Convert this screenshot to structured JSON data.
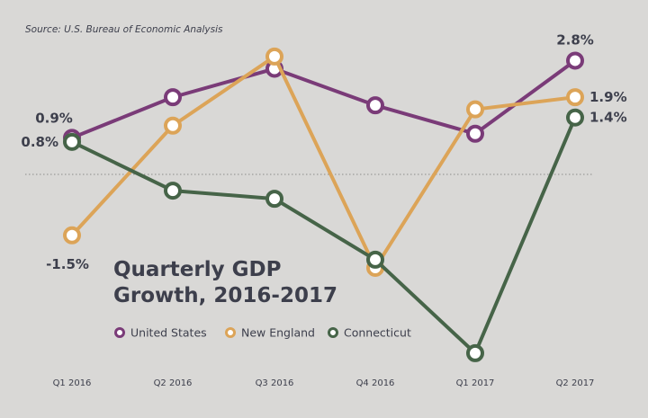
{
  "chart_data": {
    "type": "line",
    "title": "Quarterly GDP Growth, 2016-2017",
    "title_lines": [
      "Quarterly GDP",
      "Growth, 2016-2017"
    ],
    "source": "Source: U.S. Bureau of Economic Analysis",
    "xlabel": "",
    "ylabel": "",
    "categories": [
      "Q1 2016",
      "Q2 2016",
      "Q3 2016",
      "Q4 2016",
      "Q1 2017",
      "Q2 2017"
    ],
    "ylim": [
      -4.5,
      3.2
    ],
    "zero_line": true,
    "grid": false,
    "legend_position": "center-left",
    "series": [
      {
        "name": "United States",
        "color": "#7a3b78",
        "values": [
          0.9,
          1.9,
          2.6,
          1.7,
          1.0,
          2.8
        ]
      },
      {
        "name": "New England",
        "color": "#dca458",
        "values": [
          -1.5,
          1.2,
          2.9,
          -2.3,
          1.6,
          1.9
        ]
      },
      {
        "name": "Connecticut",
        "color": "#466448",
        "values": [
          0.8,
          -0.4,
          -0.6,
          -2.1,
          -4.4,
          1.4
        ]
      }
    ],
    "annotations": [
      {
        "series": "United States",
        "index": 0,
        "text": "0.9%"
      },
      {
        "series": "Connecticut",
        "index": 0,
        "text": "0.8%"
      },
      {
        "series": "New England",
        "index": 0,
        "text": "-1.5%"
      },
      {
        "series": "United States",
        "index": 5,
        "text": "2.8%"
      },
      {
        "series": "New England",
        "index": 5,
        "text": "1.9%"
      },
      {
        "series": "Connecticut",
        "index": 5,
        "text": "1.4%"
      }
    ]
  },
  "colors": {
    "background": "#d9d8d6",
    "text": "#3d3f4c",
    "zero_line": "#8c8b89"
  }
}
